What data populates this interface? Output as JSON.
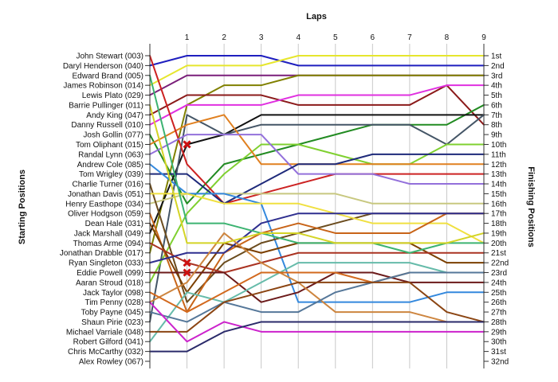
{
  "chart_data": {
    "type": "line",
    "title": "",
    "xlabel": "Laps",
    "ylabel_left": "Starting Positions",
    "ylabel_right": "Finishing Positions",
    "x": [
      0,
      1,
      2,
      3,
      4,
      5,
      6,
      7,
      8,
      9
    ],
    "x_tick_labels": [
      "1",
      "2",
      "3",
      "4",
      "5",
      "6",
      "7",
      "8",
      "9"
    ],
    "ylim": [
      1,
      32
    ],
    "y_direction": "inverted",
    "grid": "vertical",
    "legend": "none",
    "start_labels": [
      "John Stewart (003)",
      "Daryl Henderson (040)",
      "Edward Brand (005)",
      "James Robinson (014)",
      "Lewis Plato (029)",
      "Barrie Pullinger (011)",
      "Andy King (047)",
      "Danny Russell (010)",
      "Josh Gollin (077)",
      "Tom Oliphant (015)",
      "Randal Lynn (063)",
      "Andrew Cole (085)",
      "Tom Wrigley (039)",
      "Charlie Turner (016)",
      "Jonathan Davis (051)",
      "Henry Easthope (034)",
      "Oliver Hodgson (059)",
      "Dean Hale (031)",
      "Jack Marshall (049)",
      "Thomas Arme (094)",
      "Jonathan Drabble (017)",
      "Ryan Singleton (033)",
      "Eddie Powell (099)",
      "Aaran Stroud (018)",
      "Jack Taylor (098)",
      "Tim Penny (028)",
      "Toby Payne (045)",
      "Shaun Pirie (023)",
      "Michael Varriale (048)",
      "Robert Gilford (041)",
      "Chris McCarthy (032)",
      "Alex Rowley (067)"
    ],
    "finish_labels": [
      "1st",
      "2nd",
      "3rd",
      "4th",
      "5th",
      "6th",
      "7th",
      "8th",
      "9th",
      "10th",
      "11th",
      "12th",
      "13th",
      "14th",
      "15th",
      "16th",
      "17th",
      "18th",
      "19th",
      "20th",
      "21st",
      "22nd",
      "23rd",
      "24th",
      "25th",
      "26th",
      "27th",
      "28th",
      "29th",
      "30th",
      "31st",
      "32nd"
    ],
    "series": [
      {
        "color": "#1f1fbf",
        "values": [
          2,
          1,
          1,
          1,
          2,
          2,
          2,
          2,
          2,
          2
        ]
      },
      {
        "color": "#e6e62e",
        "values": [
          4,
          2,
          2,
          2,
          1,
          1,
          1,
          1,
          1,
          1
        ]
      },
      {
        "color": "#7a1f7a",
        "values": [
          5,
          3,
          3,
          3,
          3,
          3,
          3,
          3,
          3,
          3
        ]
      },
      {
        "color": "#808000",
        "values": [
          21,
          6,
          4,
          4,
          3,
          3,
          3,
          3,
          3,
          3
        ]
      },
      {
        "color": "#8b1a1a",
        "values": [
          7,
          5,
          5,
          5,
          6,
          6,
          6,
          6,
          4,
          8
        ]
      },
      {
        "color": "#e030e0",
        "values": [
          8,
          6,
          6,
          6,
          5,
          5,
          5,
          5,
          4,
          4
        ]
      },
      {
        "color": "#228b22",
        "values": [
          9,
          16,
          12,
          11,
          10,
          9,
          8,
          8,
          8,
          6
        ]
      },
      {
        "color": "#111111",
        "values": [
          19,
          10,
          9,
          7,
          7,
          7,
          7,
          7,
          7,
          7
        ]
      },
      {
        "color": "#445566",
        "values": [
          28,
          7,
          9,
          8,
          8,
          8,
          8,
          8,
          10,
          7
        ]
      },
      {
        "color": "#7fd030",
        "values": [
          24,
          17,
          13,
          10,
          10,
          11,
          12,
          12,
          10,
          10
        ]
      },
      {
        "color": "#e08020",
        "values": [
          10,
          8,
          7,
          12,
          12,
          12,
          12,
          12,
          12,
          12
        ]
      },
      {
        "color": "#cc2222",
        "values": [
          1,
          12,
          16,
          15,
          14,
          13,
          13,
          13,
          13,
          13
        ]
      },
      {
        "color": "#9370db",
        "values": [
          11,
          9,
          9,
          9,
          13,
          13,
          13,
          14,
          14,
          14
        ]
      },
      {
        "color": "#1e2a7a",
        "values": [
          13,
          13,
          16,
          14,
          12,
          12,
          11,
          11,
          11,
          11
        ]
      },
      {
        "color": "#c8c880",
        "values": [
          16,
          15,
          15,
          15,
          15,
          15,
          16,
          16,
          16,
          16
        ]
      },
      {
        "color": "#3388dd",
        "values": [
          12,
          15,
          15,
          16,
          26,
          26,
          26,
          26,
          25,
          25
        ]
      },
      {
        "color": "#6b4c1e",
        "values": [
          14,
          26,
          22,
          20,
          19,
          18,
          17,
          17,
          17,
          17
        ]
      },
      {
        "color": "#f0e040",
        "values": [
          15,
          15,
          16,
          16,
          16,
          17,
          18,
          18,
          18,
          20
        ]
      },
      {
        "color": "#c86418",
        "values": [
          17,
          27,
          21,
          19,
          18,
          19,
          19,
          19,
          17,
          17
        ]
      },
      {
        "color": "#7b3f00",
        "values": [
          18,
          25,
          20,
          21,
          20,
          20,
          20,
          20,
          22,
          22
        ]
      },
      {
        "color": "#aa3322",
        "values": [
          20,
          22,
          23,
          22,
          21,
          21,
          21,
          21,
          21,
          21
        ]
      },
      {
        "color": "#2f2f8f",
        "values": [
          22,
          21,
          21,
          18,
          17,
          17,
          17,
          17,
          17,
          17
        ]
      },
      {
        "color": "#6b1a1a",
        "values": [
          23,
          23,
          23,
          26,
          25,
          23,
          23,
          24,
          24,
          24
        ]
      },
      {
        "color": "#66bbaa",
        "values": [
          30,
          25,
          26,
          24,
          22,
          22,
          22,
          22,
          23,
          23
        ]
      },
      {
        "color": "#cd853f",
        "values": [
          26,
          24,
          19,
          22,
          24,
          27,
          27,
          27,
          28,
          28
        ]
      },
      {
        "color": "#d2691e",
        "values": [
          25,
          27,
          25,
          23,
          23,
          23,
          24,
          23,
          23,
          23
        ]
      },
      {
        "color": "#557799",
        "values": [
          27,
          28,
          26,
          27,
          27,
          25,
          24,
          23,
          23,
          23
        ]
      },
      {
        "color": "#8b4513",
        "values": [
          29,
          29,
          26,
          25,
          24,
          24,
          24,
          24,
          27,
          28
        ]
      },
      {
        "color": "#cc22cc",
        "values": [
          26,
          30,
          28,
          29,
          29,
          29,
          29,
          29,
          29,
          29
        ]
      },
      {
        "color": "#2a2a6a",
        "values": [
          31,
          31,
          29,
          28,
          28,
          28,
          28,
          28,
          28,
          28
        ]
      },
      {
        "color": "#3cb371",
        "values": [
          3,
          18,
          18,
          19,
          20,
          20,
          20,
          21,
          20,
          20
        ]
      },
      {
        "color": "#d4d426",
        "values": [
          6,
          20,
          20,
          19,
          19,
          20,
          20,
          20,
          20,
          19
        ]
      }
    ],
    "markers": [
      {
        "symbol": "x",
        "color": "#cc1111",
        "x": 1,
        "y": 10
      },
      {
        "symbol": "x",
        "color": "#cc1111",
        "x": 1,
        "y": 22
      },
      {
        "symbol": "x",
        "color": "#cc1111",
        "x": 1,
        "y": 23
      }
    ]
  }
}
